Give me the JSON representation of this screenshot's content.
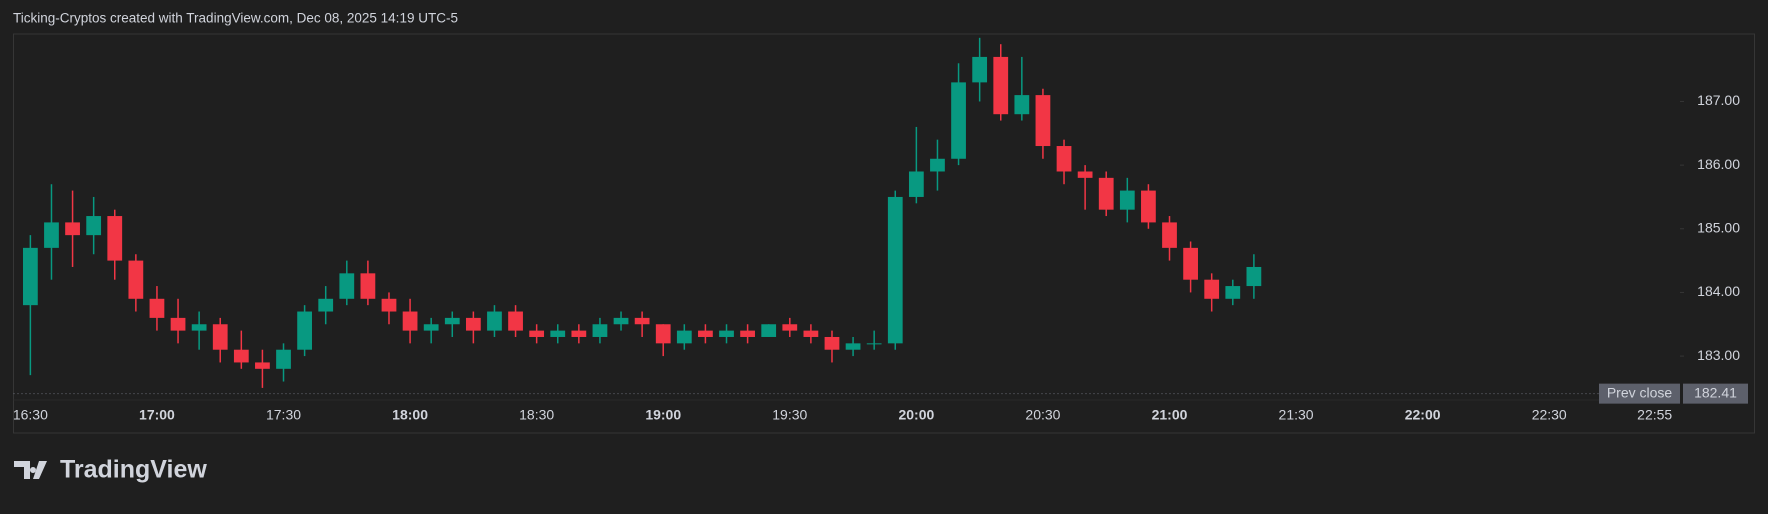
{
  "header": "Ticking-Cryptos created with TradingView.com, Dec 08, 2025 14:19 UTC-5",
  "logo": "TradingView",
  "chart_data": {
    "type": "candlestick",
    "x": [
      "16:30",
      "16:35",
      "16:40",
      "16:45",
      "16:50",
      "16:55",
      "17:00",
      "17:05",
      "17:10",
      "17:15",
      "17:20",
      "17:25",
      "17:30",
      "17:35",
      "17:40",
      "17:45",
      "17:50",
      "17:55",
      "18:00",
      "18:05",
      "18:10",
      "18:15",
      "18:20",
      "18:25",
      "18:30",
      "18:35",
      "18:40",
      "18:45",
      "18:50",
      "18:55",
      "19:00",
      "19:05",
      "19:10",
      "19:15",
      "19:20",
      "19:25",
      "19:30",
      "19:35",
      "19:40",
      "19:45",
      "19:50",
      "19:55",
      "20:00",
      "20:05",
      "20:10",
      "20:15",
      "20:20",
      "20:25",
      "20:30",
      "20:35",
      "20:40",
      "20:45",
      "20:50",
      "20:55",
      "21:00",
      "21:05",
      "21:10",
      "21:15",
      "21:20"
    ],
    "open": [
      183.8,
      184.7,
      185.1,
      184.9,
      185.2,
      184.5,
      183.9,
      183.6,
      183.4,
      183.5,
      183.1,
      182.9,
      182.8,
      183.1,
      183.7,
      183.9,
      184.3,
      183.9,
      183.7,
      183.4,
      183.5,
      183.6,
      183.4,
      183.7,
      183.4,
      183.3,
      183.4,
      183.3,
      183.5,
      183.6,
      183.5,
      183.2,
      183.4,
      183.3,
      183.4,
      183.3,
      183.5,
      183.4,
      183.3,
      183.1,
      183.2,
      183.2,
      185.5,
      185.9,
      186.1,
      187.3,
      187.7,
      186.8,
      187.1,
      186.3,
      185.9,
      185.8,
      185.3,
      185.6,
      185.1,
      184.7,
      184.2,
      183.9,
      184.1
    ],
    "high": [
      184.9,
      185.7,
      185.6,
      185.5,
      185.3,
      184.6,
      184.1,
      183.9,
      183.7,
      183.6,
      183.4,
      183.1,
      183.2,
      183.8,
      184.1,
      184.5,
      184.5,
      184.0,
      183.9,
      183.6,
      183.7,
      183.7,
      183.8,
      183.8,
      183.5,
      183.5,
      183.5,
      183.6,
      183.7,
      183.7,
      183.5,
      183.5,
      183.5,
      183.5,
      183.5,
      183.5,
      183.6,
      183.5,
      183.4,
      183.3,
      183.4,
      185.6,
      186.6,
      186.4,
      187.6,
      188.0,
      187.9,
      187.7,
      187.2,
      186.4,
      186.0,
      185.9,
      185.8,
      185.7,
      185.2,
      184.8,
      184.3,
      184.2,
      184.6
    ],
    "low": [
      182.7,
      184.2,
      184.4,
      184.6,
      184.2,
      183.7,
      183.4,
      183.2,
      183.1,
      182.9,
      182.8,
      182.5,
      182.6,
      183.0,
      183.5,
      183.8,
      183.8,
      183.5,
      183.2,
      183.2,
      183.3,
      183.2,
      183.3,
      183.3,
      183.2,
      183.2,
      183.2,
      183.2,
      183.4,
      183.3,
      183.0,
      183.1,
      183.2,
      183.2,
      183.2,
      183.3,
      183.3,
      183.2,
      182.9,
      183.0,
      183.1,
      183.1,
      185.4,
      185.6,
      186.0,
      187.0,
      186.7,
      186.7,
      186.1,
      185.7,
      185.3,
      185.2,
      185.1,
      185.0,
      184.5,
      184.0,
      183.7,
      183.8,
      183.9
    ],
    "close": [
      184.7,
      185.1,
      184.9,
      185.2,
      184.5,
      183.9,
      183.6,
      183.4,
      183.5,
      183.1,
      182.9,
      182.8,
      183.1,
      183.7,
      183.9,
      184.3,
      183.9,
      183.7,
      183.4,
      183.5,
      183.6,
      183.4,
      183.7,
      183.4,
      183.3,
      183.4,
      183.3,
      183.5,
      183.6,
      183.5,
      183.2,
      183.4,
      183.3,
      183.4,
      183.3,
      183.5,
      183.4,
      183.3,
      183.1,
      183.2,
      183.2,
      185.5,
      185.9,
      186.1,
      187.3,
      187.7,
      186.8,
      187.1,
      186.3,
      185.9,
      185.8,
      185.3,
      185.6,
      185.1,
      184.7,
      184.2,
      183.9,
      184.1,
      184.4
    ],
    "up_color": "#089981",
    "down_color": "#f23645",
    "xlim": [
      "16:26",
      "23:01"
    ],
    "xticks": [
      "16:30",
      "17:00",
      "17:30",
      "18:00",
      "18:30",
      "19:00",
      "19:30",
      "20:00",
      "20:30",
      "21:00",
      "21:30",
      "22:00",
      "22:30",
      "22:55"
    ],
    "ylim": [
      182.31,
      188.06
    ],
    "yticks": [
      {
        "value": 183,
        "label": "183.00"
      },
      {
        "value": 184,
        "label": "184.00"
      },
      {
        "value": 185,
        "label": "185.00"
      },
      {
        "value": 186,
        "label": "186.00"
      },
      {
        "value": 187,
        "label": "187.00"
      }
    ],
    "prev_close": {
      "label": "Prev close",
      "value": 182.41
    }
  }
}
